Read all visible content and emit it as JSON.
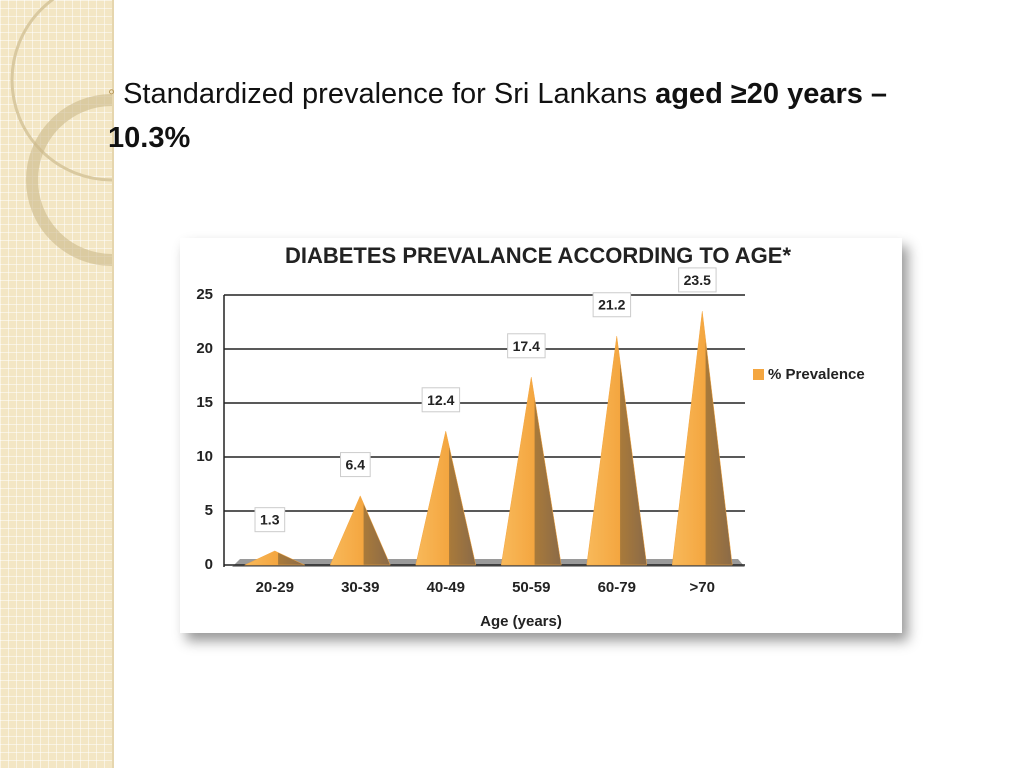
{
  "bullet": {
    "text": "Standardized  prevalence  for Sri Lankans",
    "emphasis": "aged ≥20 years – 10.3%"
  },
  "chart_data": {
    "type": "bar",
    "title": "DIABETES PREVALANCE ACCORDING TO AGE*",
    "x_label": "Age (years)",
    "categories": [
      "20-29",
      "30-39",
      "40-49",
      "50-59",
      "60-79",
      ">70"
    ],
    "series": [
      {
        "name": "% Prevalence",
        "color": "#f4a640",
        "values": [
          1.3,
          6.4,
          12.4,
          17.4,
          21.2,
          23.5
        ]
      }
    ],
    "ylim": [
      0,
      25
    ],
    "yticks": [
      0,
      5,
      10,
      15,
      20,
      25
    ],
    "grid": true,
    "legend": "right"
  }
}
